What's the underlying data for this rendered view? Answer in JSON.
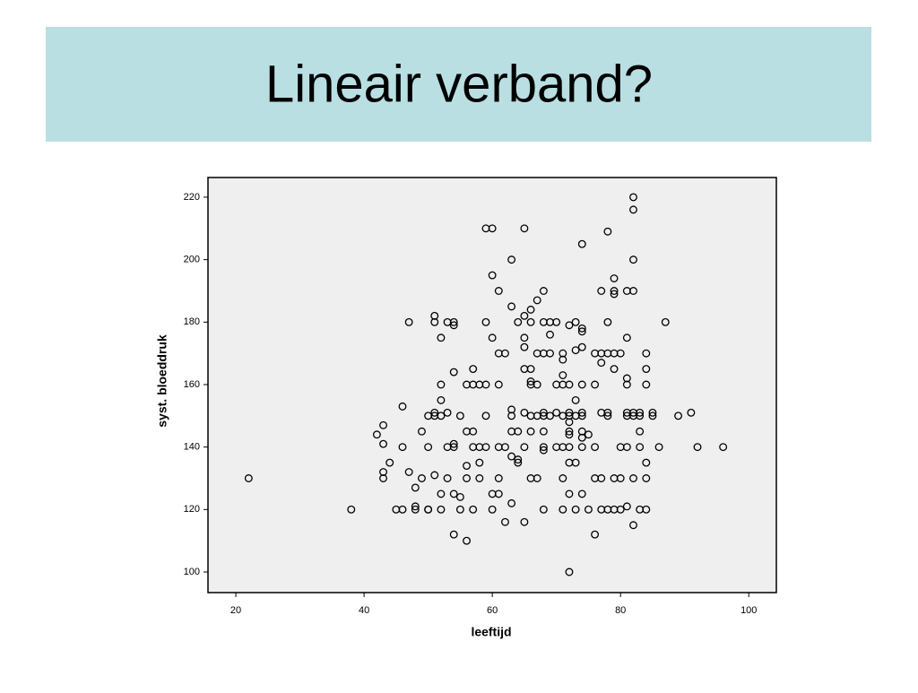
{
  "chart_data": {
    "type": "scatter",
    "title": "Lineair verband?",
    "xlabel": "leeftijd",
    "ylabel": "syst. bloeddruk",
    "xlim": [
      15.66,
      104.3
    ],
    "ylim": [
      93.4,
      226.3
    ],
    "xticks": [
      20,
      40,
      60,
      80,
      100
    ],
    "yticks": [
      100,
      120,
      140,
      160,
      180,
      200,
      220
    ],
    "color": "#000000",
    "x": [
      22,
      38,
      42,
      43,
      43,
      43,
      43,
      44,
      45,
      46,
      46,
      46,
      47,
      47,
      48,
      48,
      48,
      49,
      49,
      50,
      50,
      50,
      50,
      51,
      51,
      51,
      51,
      51,
      52,
      52,
      52,
      52,
      52,
      52,
      53,
      53,
      53,
      53,
      54,
      54,
      54,
      54,
      54,
      54,
      54,
      55,
      55,
      55,
      56,
      56,
      56,
      56,
      56,
      57,
      57,
      57,
      57,
      57,
      58,
      58,
      58,
      58,
      59,
      59,
      59,
      59,
      59,
      60,
      60,
      60,
      60,
      60,
      61,
      61,
      61,
      61,
      61,
      61,
      62,
      62,
      62,
      63,
      63,
      63,
      63,
      63,
      63,
      63,
      64,
      64,
      64,
      64,
      65,
      65,
      65,
      65,
      65,
      65,
      65,
      65,
      66,
      66,
      66,
      66,
      66,
      66,
      66,
      66,
      67,
      67,
      67,
      67,
      67,
      68,
      68,
      68,
      68,
      68,
      68,
      68,
      68,
      68,
      69,
      69,
      69,
      69,
      70,
      70,
      70,
      70,
      71,
      71,
      71,
      71,
      71,
      71,
      71,
      71,
      72,
      72,
      72,
      72,
      72,
      72,
      72,
      72,
      72,
      72,
      72,
      73,
      73,
      73,
      73,
      73,
      73,
      74,
      74,
      74,
      74,
      74,
      74,
      74,
      74,
      74,
      74,
      74,
      75,
      75,
      76,
      76,
      76,
      76,
      76,
      77,
      77,
      77,
      77,
      77,
      77,
      78,
      78,
      78,
      78,
      78,
      78,
      79,
      79,
      79,
      79,
      79,
      79,
      79,
      80,
      80,
      80,
      80,
      81,
      81,
      81,
      81,
      81,
      81,
      81,
      81,
      82,
      82,
      82,
      82,
      82,
      82,
      82,
      82,
      83,
      83,
      83,
      83,
      83,
      84,
      84,
      84,
      84,
      84,
      84,
      85,
      85,
      86,
      87,
      89,
      91,
      92,
      96
    ],
    "y": [
      130,
      120,
      144,
      147,
      141,
      132,
      130,
      135,
      120,
      120,
      140,
      153,
      180,
      132,
      127,
      121,
      120,
      145,
      130,
      150,
      140,
      120,
      120,
      182,
      180,
      151,
      150,
      131,
      175,
      160,
      155,
      150,
      125,
      120,
      180,
      151,
      140,
      130,
      179,
      180,
      164,
      141,
      140,
      125,
      112,
      150,
      124,
      120,
      160,
      145,
      134,
      130,
      110,
      165,
      160,
      145,
      140,
      120,
      160,
      140,
      135,
      130,
      210,
      180,
      160,
      150,
      140,
      210,
      195,
      175,
      125,
      120,
      190,
      170,
      160,
      140,
      130,
      125,
      170,
      140,
      116,
      200,
      185,
      152,
      150,
      145,
      137,
      122,
      180,
      145,
      136,
      135,
      210,
      182,
      175,
      172,
      165,
      151,
      140,
      116,
      184,
      180,
      165,
      161,
      160,
      150,
      145,
      130,
      187,
      170,
      160,
      150,
      130,
      190,
      180,
      170,
      151,
      150,
      145,
      140,
      139,
      120,
      180,
      176,
      170,
      150,
      180,
      160,
      151,
      140,
      170,
      168,
      163,
      160,
      150,
      140,
      130,
      120,
      179,
      160,
      151,
      150,
      148,
      145,
      144,
      140,
      135,
      125,
      100,
      180,
      171,
      155,
      150,
      135,
      120,
      205,
      178,
      177,
      172,
      160,
      151,
      150,
      145,
      143,
      140,
      125,
      144,
      120,
      170,
      160,
      140,
      130,
      112,
      190,
      170,
      167,
      151,
      130,
      120,
      209,
      180,
      170,
      151,
      150,
      120,
      194,
      190,
      189,
      170,
      165,
      130,
      120,
      170,
      140,
      130,
      120,
      190,
      175,
      162,
      160,
      151,
      150,
      140,
      121,
      220,
      216,
      200,
      190,
      151,
      150,
      130,
      115,
      151,
      150,
      145,
      140,
      120,
      170,
      165,
      160,
      135,
      130,
      120,
      151,
      150,
      140,
      180,
      150,
      151,
      140,
      140
    ]
  }
}
